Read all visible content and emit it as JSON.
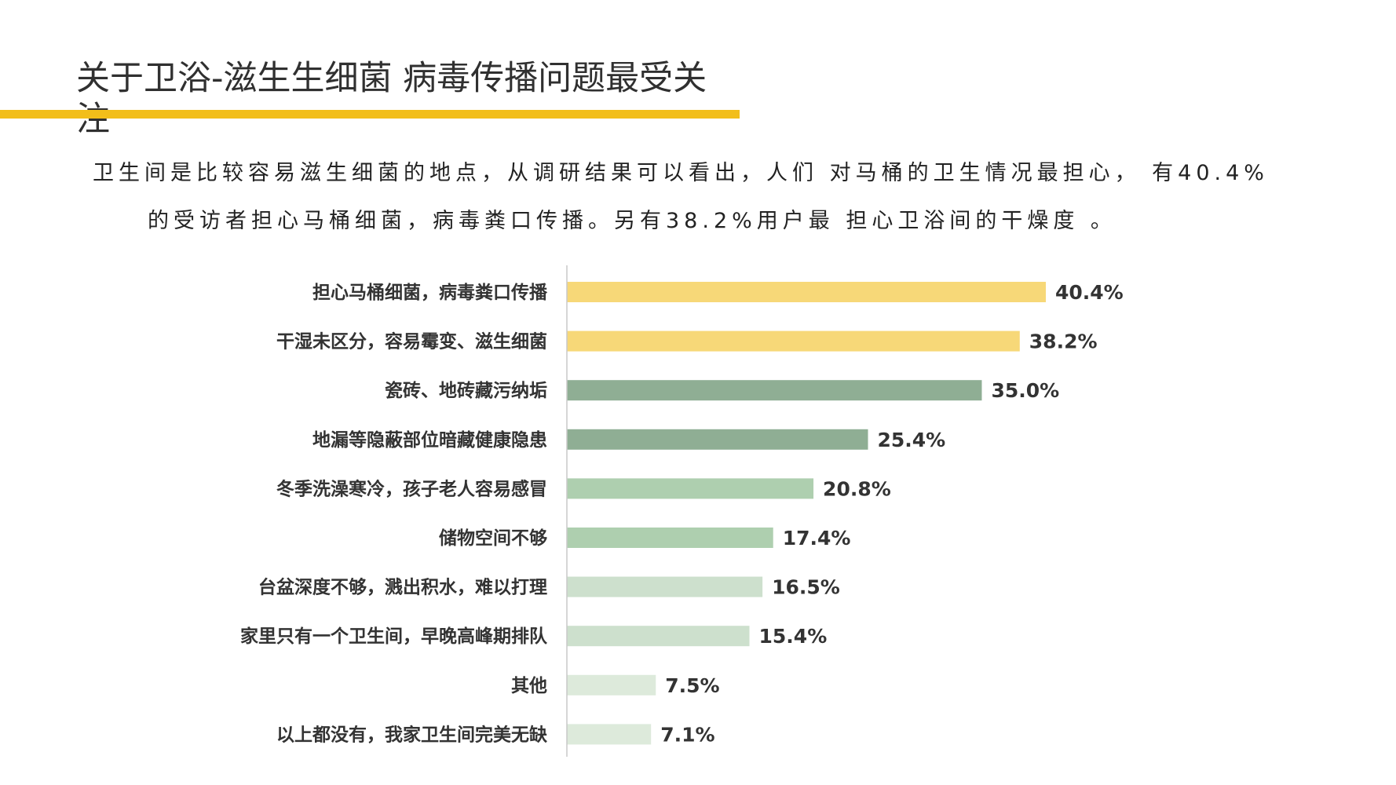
{
  "slide": {
    "title": "关于卫浴-滋生生细菌 病毒传播问题最受关注",
    "intro_line1": "卫生间是比较容易滋生细菌的地点，从调研结果可以看出，人们 对马桶的卫生情况最担心， 有40.4%",
    "intro_line2": "的受访者担心马桶细菌，病毒粪口传播。另有38.2%用户最 担心卫浴间的干燥度 。"
  },
  "colors": {
    "accent_line": "#f2be1a",
    "axis": "#c8c8c8"
  },
  "chart_data": {
    "type": "bar",
    "orientation": "horizontal",
    "categories": [
      "担心马桶细菌，病毒粪口传播",
      "干湿未区分，容易霉变、滋生细菌",
      "瓷砖、地砖藏污纳垢",
      "地漏等隐蔽部位暗藏健康隐患",
      "冬季洗澡寒冷，孩子老人容易感冒",
      "储物空间不够",
      "台盆深度不够，溅出积水，难以打理",
      "家里只有一个卫生间，早晚高峰期排队",
      "其他",
      "以上都没有，我家卫生间完美无缺"
    ],
    "values": [
      40.4,
      38.2,
      35.0,
      25.4,
      20.8,
      17.4,
      16.5,
      15.4,
      7.5,
      7.1
    ],
    "value_labels": [
      "40.4%",
      "38.2%",
      "35.0%",
      "25.4%",
      "20.8%",
      "17.4%",
      "16.5%",
      "15.4%",
      "7.5%",
      "7.1%"
    ],
    "bar_colors": [
      "#f7d878",
      "#f7d878",
      "#8fae94",
      "#8fae94",
      "#aecfaf",
      "#aecfaf",
      "#cde0cd",
      "#cde0cd",
      "#ddeadb",
      "#ddeadb"
    ],
    "xlim": [
      0,
      45
    ],
    "grid": false,
    "legend": "none"
  }
}
